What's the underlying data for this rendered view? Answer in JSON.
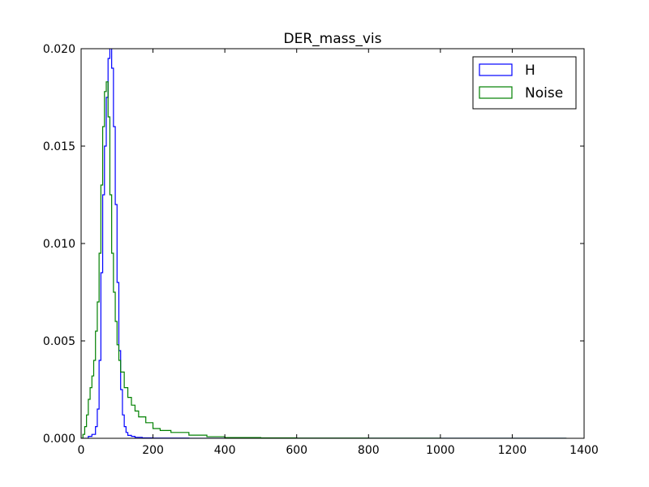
{
  "chart_data": {
    "type": "histogram",
    "title": "DER_mass_vis",
    "xlabel": "",
    "ylabel": "",
    "xlim": [
      0,
      1400
    ],
    "ylim": [
      0,
      0.02
    ],
    "x_ticks": [
      "0",
      "200",
      "400",
      "600",
      "800",
      "1000",
      "1200",
      "1400"
    ],
    "y_ticks": [
      "0.000",
      "0.005",
      "0.010",
      "0.015",
      "0.020"
    ],
    "legend_position": "top-right",
    "grid": false,
    "series": [
      {
        "name": "H",
        "color": "#0000ff",
        "histtype": "step",
        "x": [
          0,
          20,
          30,
          40,
          45,
          50,
          55,
          60,
          65,
          70,
          75,
          80,
          85,
          90,
          95,
          100,
          105,
          110,
          115,
          120,
          125,
          130,
          140,
          150,
          170,
          200,
          300,
          1350
        ],
        "y": [
          0,
          0.0001,
          0.0002,
          0.0006,
          0.0015,
          0.004,
          0.0085,
          0.0125,
          0.015,
          0.0175,
          0.0195,
          0.0202,
          0.019,
          0.016,
          0.012,
          0.008,
          0.0045,
          0.0025,
          0.0012,
          0.0006,
          0.0003,
          0.00015,
          0.0001,
          5e-05,
          2e-05,
          1e-05,
          0,
          0
        ]
      },
      {
        "name": "Noise",
        "color": "#008000",
        "histtype": "step",
        "x": [
          0,
          5,
          10,
          15,
          20,
          25,
          30,
          35,
          40,
          45,
          50,
          55,
          60,
          65,
          70,
          75,
          80,
          85,
          90,
          95,
          100,
          105,
          110,
          120,
          130,
          140,
          150,
          160,
          180,
          200,
          220,
          250,
          300,
          350,
          400,
          500,
          600,
          800,
          1000,
          1350
        ],
        "y": [
          0,
          0.0002,
          0.0006,
          0.0012,
          0.002,
          0.0026,
          0.0032,
          0.004,
          0.0055,
          0.007,
          0.0095,
          0.013,
          0.016,
          0.0178,
          0.0183,
          0.0165,
          0.0125,
          0.0095,
          0.0075,
          0.006,
          0.0048,
          0.004,
          0.0034,
          0.0026,
          0.0021,
          0.0017,
          0.0014,
          0.0011,
          0.0008,
          0.0005,
          0.0004,
          0.0003,
          0.00016,
          8e-05,
          4e-05,
          2e-05,
          1e-05,
          5e-06,
          2e-06,
          0
        ]
      }
    ]
  }
}
